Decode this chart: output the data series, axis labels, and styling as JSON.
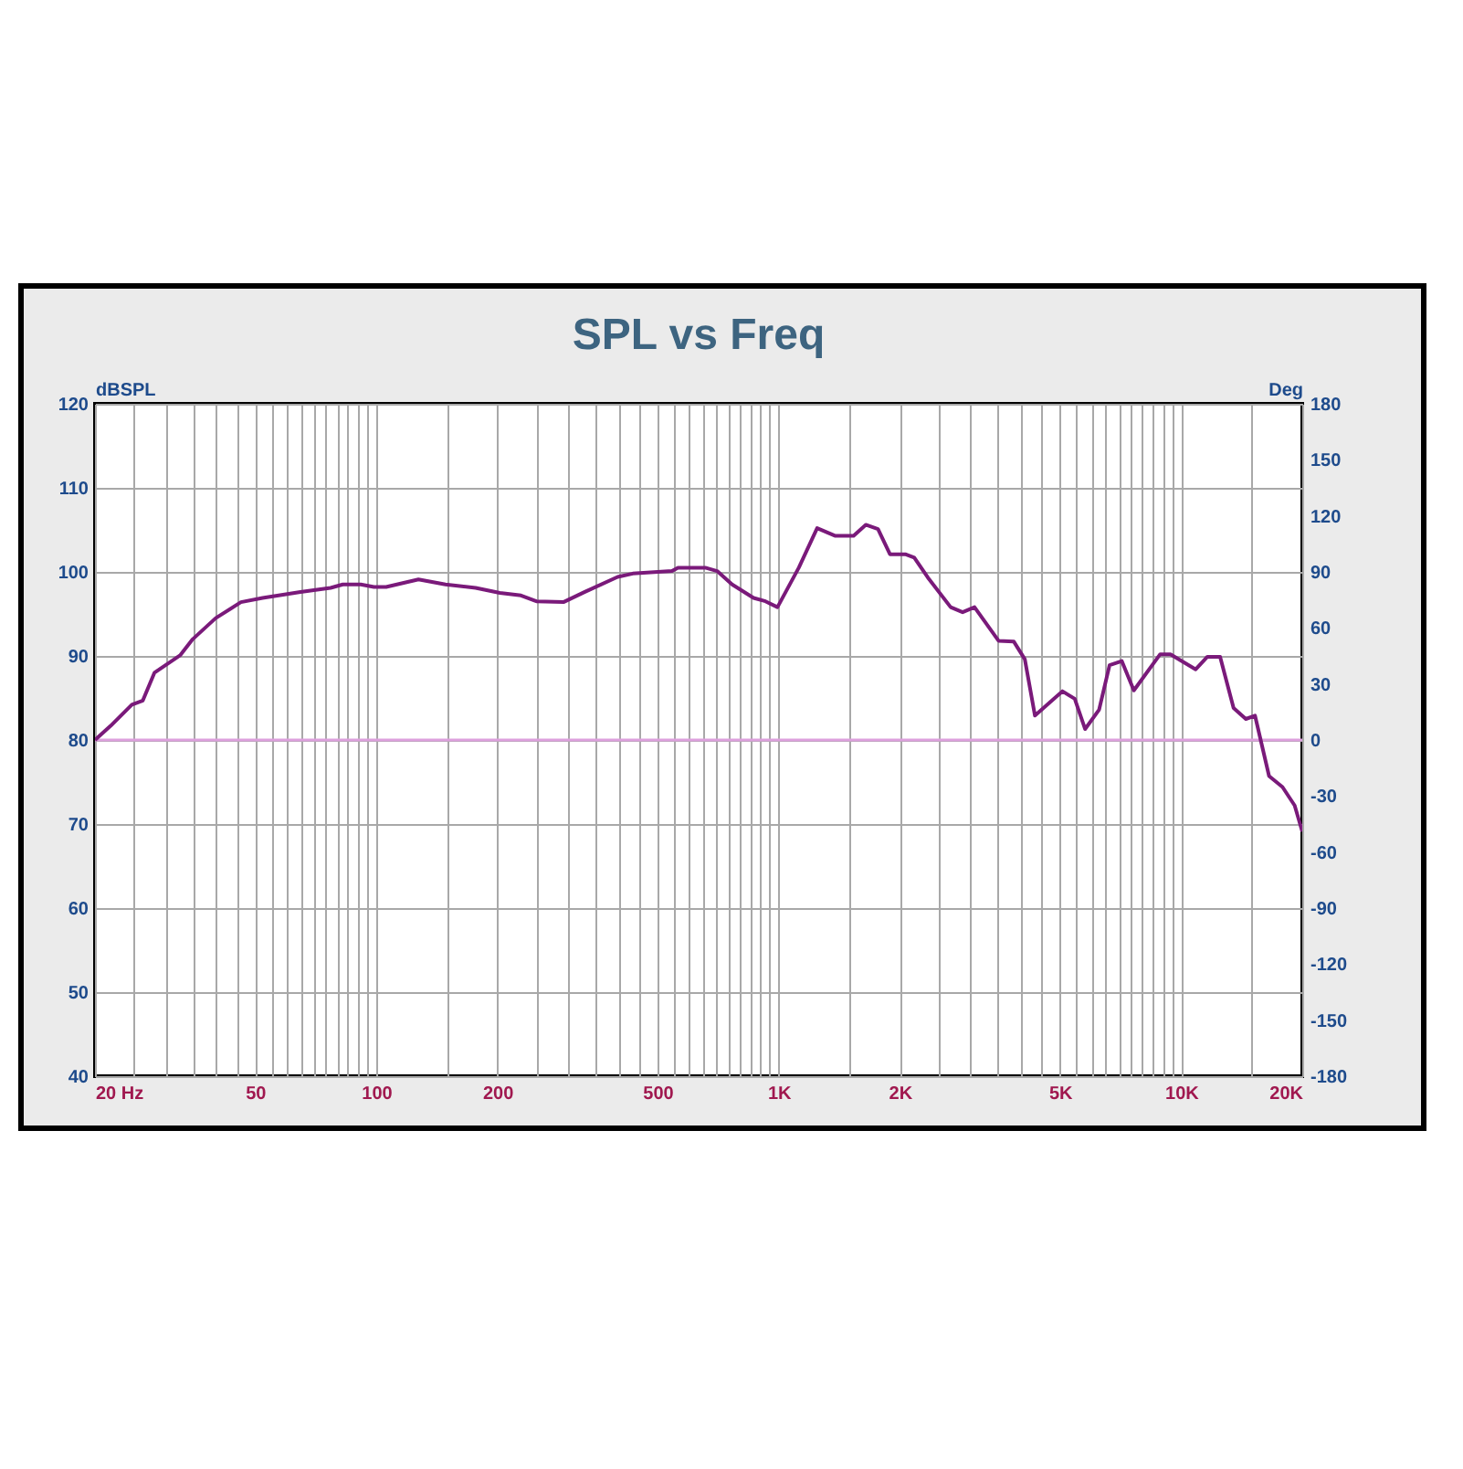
{
  "chart_data": {
    "type": "line",
    "title": "SPL vs Freq",
    "ylabel": "dBSPL",
    "y2label": "Deg",
    "log": "x",
    "grid": true,
    "marker": "none",
    "line_style": "solid",
    "xlim": [
      20,
      20000
    ],
    "ylim": [
      40,
      120
    ],
    "yticks": [
      40,
      50,
      60,
      70,
      80,
      90,
      100,
      110,
      120
    ],
    "y2lim": [
      -180,
      180
    ],
    "y2ticks": [
      -180,
      -150,
      -120,
      -90,
      -60,
      -30,
      0,
      30,
      60,
      90,
      120,
      150,
      180
    ],
    "xticks": [
      {
        "value": 20,
        "label": "20  Hz"
      },
      {
        "value": 25,
        "label": null
      },
      {
        "value": 30,
        "label": null
      },
      {
        "value": 35,
        "label": null
      },
      {
        "value": 40,
        "label": null
      },
      {
        "value": 45,
        "label": null
      },
      {
        "value": 50,
        "label": "50"
      },
      {
        "value": 55,
        "label": null
      },
      {
        "value": 60,
        "label": null
      },
      {
        "value": 65,
        "label": null
      },
      {
        "value": 70,
        "label": null
      },
      {
        "value": 75,
        "label": null
      },
      {
        "value": 80,
        "label": null
      },
      {
        "value": 85,
        "label": null
      },
      {
        "value": 90,
        "label": null
      },
      {
        "value": 95,
        "label": null
      },
      {
        "value": 100,
        "label": "100"
      },
      {
        "value": 150,
        "label": null
      },
      {
        "value": 200,
        "label": "200"
      },
      {
        "value": 250,
        "label": null
      },
      {
        "value": 300,
        "label": null
      },
      {
        "value": 350,
        "label": null
      },
      {
        "value": 400,
        "label": null
      },
      {
        "value": 450,
        "label": null
      },
      {
        "value": 500,
        "label": "500"
      },
      {
        "value": 550,
        "label": null
      },
      {
        "value": 600,
        "label": null
      },
      {
        "value": 650,
        "label": null
      },
      {
        "value": 700,
        "label": null
      },
      {
        "value": 750,
        "label": null
      },
      {
        "value": 800,
        "label": null
      },
      {
        "value": 850,
        "label": null
      },
      {
        "value": 900,
        "label": null
      },
      {
        "value": 950,
        "label": null
      },
      {
        "value": 1000,
        "label": "1K"
      },
      {
        "value": 1500,
        "label": null
      },
      {
        "value": 2000,
        "label": "2K"
      },
      {
        "value": 2500,
        "label": null
      },
      {
        "value": 3000,
        "label": null
      },
      {
        "value": 3500,
        "label": null
      },
      {
        "value": 4000,
        "label": null
      },
      {
        "value": 4500,
        "label": null
      },
      {
        "value": 5000,
        "label": "5K"
      },
      {
        "value": 5500,
        "label": null
      },
      {
        "value": 6000,
        "label": null
      },
      {
        "value": 6500,
        "label": null
      },
      {
        "value": 7000,
        "label": null
      },
      {
        "value": 7500,
        "label": null
      },
      {
        "value": 8000,
        "label": null
      },
      {
        "value": 8500,
        "label": null
      },
      {
        "value": 9000,
        "label": null
      },
      {
        "value": 9500,
        "label": null
      },
      {
        "value": 10000,
        "label": "10K"
      },
      {
        "value": 15000,
        "label": null
      },
      {
        "value": 20000,
        "label": "20K"
      }
    ],
    "ref_lines": [
      {
        "axis": "y2",
        "value": 0,
        "label": null,
        "color": "#dda0dd"
      }
    ],
    "series": [
      {
        "color": "#7a1a7a",
        "x": [
          20,
          21.9,
          24.7,
          26.3,
          28.1,
          32.6,
          35,
          39.9,
          46.1,
          52.2,
          64.8,
          77,
          82.6,
          91.5,
          98.7,
          105.8,
          127.3,
          148.6,
          176.6,
          202.8,
          228.9,
          249.9,
          291.8,
          329,
          397.9,
          434,
          543,
          562,
          657,
          703,
          766,
          866,
          927,
          993,
          1122,
          1246,
          1379,
          1535,
          1646,
          1765,
          1890,
          2063,
          2172,
          2350,
          2675,
          2864,
          3066,
          3518,
          3840,
          4089,
          4333,
          5070,
          5440,
          5774,
          6254,
          6640,
          7120,
          7630,
          8870,
          9410,
          10870,
          11620,
          12500,
          13500,
          14480,
          15260,
          16540,
          17860,
          19150,
          20000
        ],
        "values": [
          80,
          81.7,
          84.2,
          84.7,
          88,
          90.1,
          92,
          94.5,
          96.4,
          96.9,
          97.6,
          98.1,
          98.5,
          98.5,
          98.2,
          98.2,
          99.1,
          98.5,
          98.1,
          97.5,
          97.2,
          96.5,
          96.4,
          97.6,
          99.4,
          99.8,
          100.1,
          100.5,
          100.5,
          100.1,
          98.5,
          96.9,
          96.5,
          95.8,
          100.5,
          105.2,
          104.3,
          104.3,
          105.6,
          105.1,
          102.1,
          102.1,
          101.7,
          99.3,
          95.8,
          95.2,
          95.8,
          91.8,
          91.7,
          89.6,
          82.9,
          85.8,
          84.9,
          81.3,
          83.6,
          88.9,
          89.4,
          85.9,
          90.2,
          90.2,
          88.4,
          89.9,
          89.9,
          83.8,
          82.5,
          82.9,
          75.7,
          74.4,
          72.2,
          69.1
        ]
      }
    ]
  }
}
